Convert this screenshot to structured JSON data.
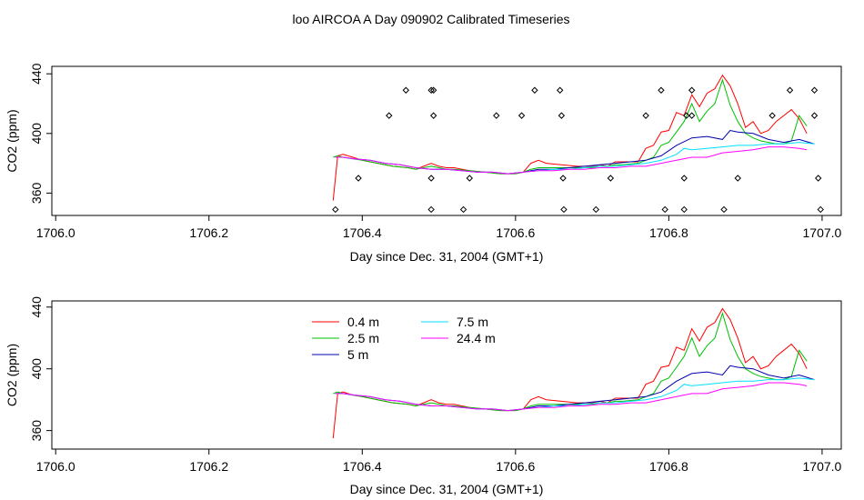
{
  "page": {
    "title": "loo AIRCOA A  Day 090902  Calibrated Timeseries"
  },
  "colors": {
    "red": "#ff0000",
    "green": "#00c000",
    "blue": "#0000aa",
    "cyan": "#00e0ff",
    "magenta": "#ff00ff",
    "axis": "#000000"
  },
  "chart_data": [
    {
      "type": "line",
      "title": "loo AIRCOA A  Day 090902  Calibrated Timeseries",
      "xlabel": "Day since Dec. 31, 2004 (GMT+1)",
      "ylabel": "CO2 (ppm)",
      "xlim": [
        1705.995,
        1707.025
      ],
      "ylim": [
        345,
        445
      ],
      "xticks": [
        "1706.0",
        "1706.2",
        "1706.4",
        "1706.6",
        "1706.8",
        "1707.0"
      ],
      "xtick_values": [
        1706.0,
        1706.2,
        1706.4,
        1706.6,
        1706.8,
        1707.0
      ],
      "yticks": [
        "360",
        "400",
        "440"
      ],
      "ytick_values": [
        360,
        400,
        440
      ],
      "legend": "none",
      "series": [
        {
          "color": "red",
          "x": [
            1706.362,
            1706.368,
            1706.375,
            1706.388,
            1706.4,
            1706.42,
            1706.44,
            1706.46,
            1706.47,
            1706.48,
            1706.49,
            1706.5,
            1706.51,
            1706.52,
            1706.54,
            1706.56,
            1706.58,
            1706.6,
            1706.61,
            1706.62,
            1706.63,
            1706.64,
            1706.66,
            1706.68,
            1706.7,
            1706.71,
            1706.72,
            1706.73,
            1706.74,
            1706.76,
            1706.77,
            1706.78,
            1706.79,
            1706.8,
            1706.81,
            1706.82,
            1706.83,
            1706.84,
            1706.85,
            1706.86,
            1706.87,
            1706.88,
            1706.89,
            1706.9,
            1706.91,
            1706.92,
            1706.93,
            1706.94,
            1706.95,
            1706.96,
            1706.97,
            1706.98
          ],
          "y": [
            355,
            385,
            386,
            384,
            382,
            380,
            378,
            377,
            376,
            378,
            380,
            378,
            377,
            377,
            375,
            374,
            373,
            373,
            374,
            380,
            382,
            380,
            379,
            378,
            378,
            379,
            378,
            381,
            381,
            381,
            390,
            392,
            401,
            402,
            414,
            412,
            426,
            418,
            427,
            430,
            439,
            432,
            420,
            404,
            408,
            400,
            402,
            408,
            412,
            416,
            410,
            400
          ]
        },
        {
          "color": "green",
          "x": [
            1706.362,
            1706.368,
            1706.375,
            1706.388,
            1706.4,
            1706.42,
            1706.44,
            1706.46,
            1706.47,
            1706.48,
            1706.49,
            1706.5,
            1706.51,
            1706.52,
            1706.54,
            1706.56,
            1706.58,
            1706.6,
            1706.61,
            1706.62,
            1706.63,
            1706.64,
            1706.66,
            1706.68,
            1706.7,
            1706.71,
            1706.72,
            1706.73,
            1706.74,
            1706.76,
            1706.77,
            1706.78,
            1706.79,
            1706.8,
            1706.81,
            1706.82,
            1706.83,
            1706.84,
            1706.85,
            1706.86,
            1706.87,
            1706.88,
            1706.89,
            1706.9,
            1706.91,
            1706.92,
            1706.93,
            1706.94,
            1706.95,
            1706.96,
            1706.97,
            1706.98
          ],
          "y": [
            384,
            385,
            384,
            383,
            382,
            380,
            378,
            377,
            376,
            377,
            378,
            377,
            376,
            376,
            375,
            374,
            373,
            373,
            374,
            376,
            377,
            377,
            377,
            377,
            377,
            378,
            378,
            379,
            379,
            380,
            382,
            384,
            392,
            394,
            401,
            408,
            420,
            408,
            415,
            420,
            436,
            419,
            408,
            400,
            397,
            395,
            394,
            393,
            393,
            395,
            412,
            405
          ]
        },
        {
          "color": "blue",
          "x": [
            1706.365,
            1706.375,
            1706.39,
            1706.41,
            1706.43,
            1706.45,
            1706.47,
            1706.49,
            1706.51,
            1706.53,
            1706.55,
            1706.57,
            1706.59,
            1706.61,
            1706.63,
            1706.65,
            1706.67,
            1706.69,
            1706.71,
            1706.73,
            1706.75,
            1706.77,
            1706.79,
            1706.81,
            1706.83,
            1706.85,
            1706.87,
            1706.88,
            1706.89,
            1706.91,
            1706.93,
            1706.95,
            1706.97,
            1706.99
          ],
          "y": [
            384,
            384,
            383,
            382,
            380,
            379,
            377,
            376,
            376,
            375,
            374,
            374,
            373,
            374,
            376,
            376,
            377,
            378,
            379,
            380,
            381,
            382,
            385,
            392,
            397,
            398,
            396,
            402,
            401,
            400,
            396,
            394,
            396,
            393
          ]
        },
        {
          "color": "cyan",
          "x": [
            1706.365,
            1706.375,
            1706.39,
            1706.41,
            1706.43,
            1706.45,
            1706.47,
            1706.49,
            1706.51,
            1706.53,
            1706.55,
            1706.57,
            1706.59,
            1706.61,
            1706.63,
            1706.65,
            1706.67,
            1706.69,
            1706.71,
            1706.73,
            1706.75,
            1706.77,
            1706.79,
            1706.81,
            1706.82,
            1706.83,
            1706.85,
            1706.87,
            1706.89,
            1706.91,
            1706.93,
            1706.95,
            1706.97,
            1706.99
          ],
          "y": [
            384,
            384,
            383,
            382,
            380,
            379,
            377,
            376,
            376,
            375,
            374,
            374,
            373,
            374,
            375,
            376,
            376,
            377,
            378,
            378,
            379,
            380,
            382,
            386,
            390,
            389,
            390,
            391,
            392,
            392,
            393,
            393,
            394,
            393
          ]
        },
        {
          "color": "magenta",
          "x": [
            1706.365,
            1706.375,
            1706.39,
            1706.41,
            1706.43,
            1706.45,
            1706.47,
            1706.49,
            1706.51,
            1706.53,
            1706.55,
            1706.57,
            1706.59,
            1706.61,
            1706.63,
            1706.65,
            1706.67,
            1706.69,
            1706.71,
            1706.73,
            1706.75,
            1706.77,
            1706.79,
            1706.81,
            1706.83,
            1706.85,
            1706.87,
            1706.89,
            1706.91,
            1706.93,
            1706.95,
            1706.97,
            1706.98
          ],
          "y": [
            384,
            384,
            383,
            382,
            380,
            379,
            377,
            376,
            376,
            375,
            374,
            374,
            373,
            374,
            375,
            375,
            376,
            376,
            377,
            377,
            378,
            378,
            380,
            382,
            384,
            384,
            387,
            388,
            389,
            391,
            391,
            390,
            389
          ]
        }
      ],
      "points": {
        "x": [
          1706.365,
          1706.395,
          1706.435,
          1706.457,
          1706.49,
          1706.49,
          1706.493,
          1706.493,
          1706.49,
          1706.54,
          1706.532,
          1706.575,
          1706.608,
          1706.625,
          1706.658,
          1706.66,
          1706.662,
          1706.663,
          1706.705,
          1706.724,
          1706.77,
          1706.79,
          1706.795,
          1706.82,
          1706.82,
          1706.823,
          1706.83,
          1706.83,
          1706.872,
          1706.89,
          1706.935,
          1706.958,
          1706.99,
          1706.99,
          1706.995,
          1706.998
        ],
        "y": [
          349,
          370,
          412,
          429,
          349,
          370,
          412,
          429,
          429,
          370,
          349,
          412,
          412,
          429,
          429,
          412,
          370,
          349,
          349,
          370,
          412,
          429,
          349,
          349,
          370,
          412,
          412,
          429,
          349,
          370,
          412,
          429,
          429,
          412,
          370,
          349
        ]
      }
    },
    {
      "type": "line",
      "title": "",
      "xlabel": "Day since Dec. 31, 2004 (GMT+1)",
      "ylabel": "CO2 (ppm)",
      "xlim": [
        1705.995,
        1707.025
      ],
      "ylim": [
        348,
        444
      ],
      "xticks": [
        "1706.0",
        "1706.2",
        "1706.4",
        "1706.6",
        "1706.8",
        "1707.0"
      ],
      "xtick_values": [
        1706.0,
        1706.2,
        1706.4,
        1706.6,
        1706.8,
        1707.0
      ],
      "yticks": [
        "360",
        "400",
        "440"
      ],
      "ytick_values": [
        360,
        400,
        440
      ],
      "legend": "top-center",
      "series": [
        {
          "name": "0.4 m",
          "color": "red",
          "x": [
            1706.362,
            1706.368,
            1706.375,
            1706.388,
            1706.4,
            1706.42,
            1706.44,
            1706.46,
            1706.47,
            1706.48,
            1706.49,
            1706.5,
            1706.51,
            1706.52,
            1706.54,
            1706.56,
            1706.58,
            1706.6,
            1706.61,
            1706.62,
            1706.63,
            1706.64,
            1706.66,
            1706.68,
            1706.7,
            1706.71,
            1706.72,
            1706.73,
            1706.74,
            1706.76,
            1706.77,
            1706.78,
            1706.79,
            1706.8,
            1706.81,
            1706.82,
            1706.83,
            1706.84,
            1706.85,
            1706.86,
            1706.87,
            1706.88,
            1706.89,
            1706.9,
            1706.91,
            1706.92,
            1706.93,
            1706.94,
            1706.95,
            1706.96,
            1706.97,
            1706.98
          ],
          "y": [
            355,
            384,
            385,
            383,
            382,
            380,
            378,
            377,
            376,
            378,
            380,
            378,
            377,
            377,
            375,
            374,
            373,
            373,
            374,
            380,
            382,
            380,
            379,
            378,
            378,
            379,
            378,
            381,
            381,
            381,
            390,
            392,
            401,
            402,
            414,
            412,
            426,
            418,
            427,
            430,
            439,
            432,
            420,
            404,
            408,
            400,
            402,
            408,
            412,
            416,
            410,
            400
          ]
        },
        {
          "name": "2.5 m",
          "color": "green",
          "x": [
            1706.362,
            1706.368,
            1706.375,
            1706.388,
            1706.4,
            1706.42,
            1706.44,
            1706.46,
            1706.47,
            1706.48,
            1706.49,
            1706.5,
            1706.51,
            1706.52,
            1706.54,
            1706.56,
            1706.58,
            1706.6,
            1706.61,
            1706.62,
            1706.63,
            1706.64,
            1706.66,
            1706.68,
            1706.7,
            1706.71,
            1706.72,
            1706.73,
            1706.74,
            1706.76,
            1706.77,
            1706.78,
            1706.79,
            1706.8,
            1706.81,
            1706.82,
            1706.83,
            1706.84,
            1706.85,
            1706.86,
            1706.87,
            1706.88,
            1706.89,
            1706.9,
            1706.91,
            1706.92,
            1706.93,
            1706.94,
            1706.95,
            1706.96,
            1706.97,
            1706.98
          ],
          "y": [
            384,
            385,
            384,
            383,
            382,
            380,
            378,
            377,
            376,
            377,
            378,
            377,
            376,
            376,
            375,
            374,
            373,
            373,
            374,
            376,
            377,
            377,
            377,
            377,
            377,
            378,
            378,
            379,
            379,
            380,
            382,
            384,
            392,
            394,
            401,
            408,
            420,
            408,
            415,
            420,
            436,
            419,
            408,
            400,
            397,
            395,
            394,
            393,
            393,
            395,
            412,
            405
          ]
        },
        {
          "name": "5 m",
          "color": "blue",
          "x": [
            1706.365,
            1706.375,
            1706.39,
            1706.41,
            1706.43,
            1706.45,
            1706.47,
            1706.49,
            1706.51,
            1706.53,
            1706.55,
            1706.57,
            1706.59,
            1706.61,
            1706.63,
            1706.65,
            1706.67,
            1706.69,
            1706.71,
            1706.73,
            1706.75,
            1706.77,
            1706.79,
            1706.81,
            1706.83,
            1706.85,
            1706.87,
            1706.88,
            1706.89,
            1706.91,
            1706.93,
            1706.95,
            1706.97,
            1706.99
          ],
          "y": [
            384,
            384,
            383,
            382,
            380,
            379,
            377,
            376,
            376,
            375,
            374,
            374,
            373,
            374,
            376,
            376,
            377,
            378,
            379,
            380,
            381,
            382,
            385,
            392,
            397,
            398,
            396,
            402,
            401,
            400,
            396,
            394,
            396,
            393
          ]
        },
        {
          "name": "7.5 m",
          "color": "cyan",
          "x": [
            1706.365,
            1706.375,
            1706.39,
            1706.41,
            1706.43,
            1706.45,
            1706.47,
            1706.49,
            1706.51,
            1706.53,
            1706.55,
            1706.57,
            1706.59,
            1706.61,
            1706.63,
            1706.65,
            1706.67,
            1706.69,
            1706.71,
            1706.73,
            1706.75,
            1706.77,
            1706.79,
            1706.81,
            1706.82,
            1706.83,
            1706.85,
            1706.87,
            1706.89,
            1706.91,
            1706.93,
            1706.95,
            1706.97,
            1706.99
          ],
          "y": [
            384,
            384,
            383,
            382,
            380,
            379,
            377,
            376,
            376,
            375,
            374,
            374,
            373,
            374,
            375,
            376,
            376,
            377,
            378,
            378,
            379,
            380,
            382,
            386,
            390,
            389,
            390,
            391,
            392,
            392,
            393,
            393,
            394,
            393
          ]
        },
        {
          "name": "24.4 m",
          "color": "magenta",
          "x": [
            1706.365,
            1706.375,
            1706.39,
            1706.41,
            1706.43,
            1706.45,
            1706.47,
            1706.49,
            1706.51,
            1706.53,
            1706.55,
            1706.57,
            1706.59,
            1706.61,
            1706.63,
            1706.65,
            1706.67,
            1706.69,
            1706.71,
            1706.73,
            1706.75,
            1706.77,
            1706.79,
            1706.81,
            1706.83,
            1706.85,
            1706.87,
            1706.89,
            1706.91,
            1706.93,
            1706.95,
            1706.97,
            1706.98
          ],
          "y": [
            384,
            384,
            383,
            382,
            380,
            379,
            377,
            376,
            376,
            375,
            374,
            374,
            373,
            374,
            375,
            375,
            376,
            376,
            377,
            377,
            378,
            378,
            380,
            382,
            384,
            384,
            387,
            388,
            389,
            391,
            391,
            390,
            389
          ]
        }
      ]
    }
  ]
}
